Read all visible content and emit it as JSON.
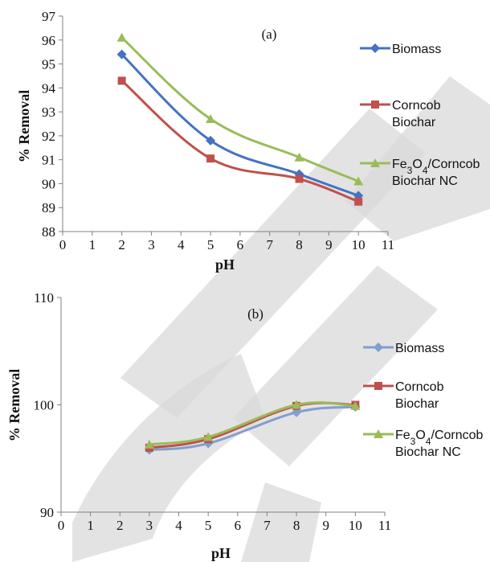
{
  "chart_data": [
    {
      "type": "line",
      "panel_label": "(a)",
      "xlabel": "pH",
      "ylabel": "% Removal",
      "xlim": [
        0,
        11
      ],
      "ylim": [
        88,
        97
      ],
      "x_ticks": [
        "0",
        "1",
        "2",
        "3",
        "4",
        "5",
        "6",
        "7",
        "8",
        "9",
        "10",
        "11"
      ],
      "y_ticks": [
        "88",
        "89",
        "90",
        "91",
        "92",
        "93",
        "94",
        "95",
        "96",
        "97"
      ],
      "smooth": true,
      "legend_placement": "right",
      "series": [
        {
          "name": "Biomass",
          "marker": "diamond",
          "color": "#4472C4",
          "x": [
            2,
            5,
            8,
            10
          ],
          "y": [
            95.4,
            91.8,
            90.4,
            89.5
          ]
        },
        {
          "name": "Corncob Biochar",
          "marker": "square",
          "color": "#C0504D",
          "x": [
            2,
            5,
            8,
            10
          ],
          "y": [
            94.3,
            91.05,
            90.2,
            89.25
          ]
        },
        {
          "name": "Fe3O4/Corncob Biochar NC",
          "marker": "triangle",
          "color": "#9BBB59",
          "x": [
            2,
            5,
            8,
            10
          ],
          "y": [
            96.1,
            92.7,
            91.1,
            90.1
          ]
        }
      ]
    },
    {
      "type": "line",
      "panel_label": "(b)",
      "xlabel": "pH",
      "ylabel": "% Removal",
      "xlim": [
        0,
        11
      ],
      "ylim": [
        90,
        110
      ],
      "x_ticks": [
        "0",
        "1",
        "2",
        "3",
        "4",
        "5",
        "6",
        "7",
        "8",
        "9",
        "10",
        "11"
      ],
      "y_ticks": [
        "90",
        "100",
        "110"
      ],
      "smooth": true,
      "legend_placement": "right",
      "series": [
        {
          "name": "Biomass",
          "marker": "diamond",
          "color": "#7F9FD0",
          "x": [
            3,
            5,
            8,
            10
          ],
          "y": [
            95.8,
            96.4,
            99.3,
            99.8
          ]
        },
        {
          "name": "Corncob Biochar",
          "marker": "square",
          "color": "#C0504D",
          "x": [
            3,
            5,
            8,
            10
          ],
          "y": [
            96.0,
            96.8,
            99.9,
            100.0
          ]
        },
        {
          "name": "Fe3O4/Corncob Biochar NC",
          "marker": "triangle",
          "color": "#9BBB59",
          "x": [
            3,
            5,
            8,
            10
          ],
          "y": [
            96.3,
            97.0,
            100.0,
            99.9
          ]
        }
      ]
    }
  ],
  "legends": [
    {
      "items": [
        {
          "line1": "Biomass",
          "line2": ""
        },
        {
          "line1": "Corncob",
          "line2": "Biochar"
        },
        {
          "line1": "Fe3O4/Corncob",
          "line2": "Biochar NC"
        }
      ]
    },
    {
      "items": [
        {
          "line1": "Biomass",
          "line2": ""
        },
        {
          "line1": "Corncob",
          "line2": "Biochar"
        },
        {
          "line1": "Fe3O4/Corncob",
          "line2": "Biochar NC"
        }
      ]
    }
  ]
}
